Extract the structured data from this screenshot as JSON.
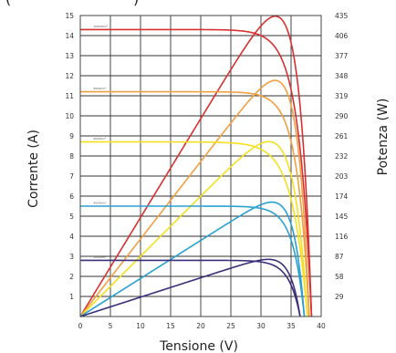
{
  "chart_data": {
    "type": "line",
    "xlabel": "Tensione (V)",
    "ylabel": "Corrente (A)",
    "y2label": "Potenza (W)",
    "xlim": [
      0,
      40
    ],
    "ylim": [
      0,
      15
    ],
    "y2lim": [
      0,
      435
    ],
    "x_ticks": [
      "0",
      "5",
      "10",
      "15",
      "20",
      "25",
      "30",
      "35",
      "40"
    ],
    "y_ticks": [
      "1",
      "2",
      "3",
      "4",
      "5",
      "6",
      "7",
      "8",
      "9",
      "10",
      "11",
      "12",
      "13",
      "14",
      "15"
    ],
    "y2_ticks": [
      "29",
      "58",
      "87",
      "116",
      "145",
      "174",
      "203",
      "232",
      "261",
      "290",
      "319",
      "348",
      "377",
      "406",
      "435"
    ],
    "grid": true,
    "series": [
      {
        "name": "1000W/m²",
        "color": "#d83030",
        "isc": 14.3,
        "pmax_v": 30.0,
        "pmax_w": 420,
        "voc": 38.4
      },
      {
        "name": "800W/m²",
        "color": "#f0a040",
        "isc": 11.2,
        "pmax_v": 30.0,
        "pmax_w": 330,
        "voc": 38.0
      },
      {
        "name": "600W/m²",
        "color": "#f4e020",
        "isc": 8.7,
        "pmax_v": 30.0,
        "pmax_w": 250,
        "voc": 37.7
      },
      {
        "name": "400W/m²",
        "color": "#2aa0d0",
        "isc": 5.5,
        "pmax_v": 30.0,
        "pmax_w": 168,
        "voc": 37.2
      },
      {
        "name": "200W/m²",
        "color": "#3a2f7a",
        "isc": 2.8,
        "pmax_v": 29.5,
        "pmax_w": 82,
        "voc": 36.5
      }
    ]
  },
  "top_fragment_left": "(",
  "top_fragment_right": ")"
}
